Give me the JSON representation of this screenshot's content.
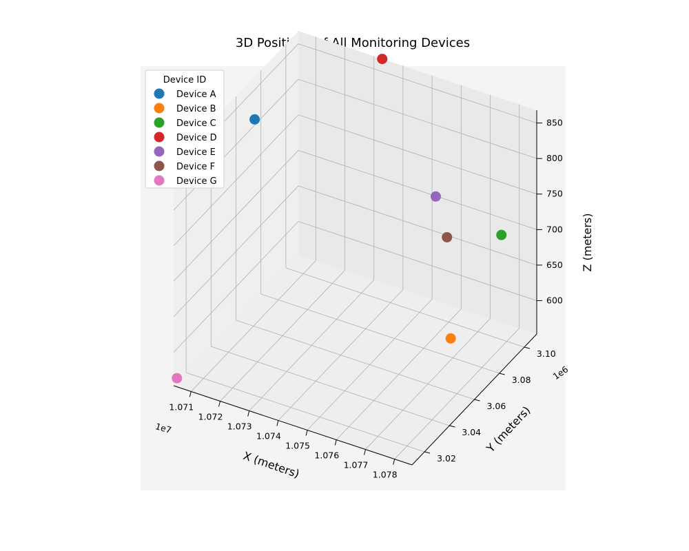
{
  "chart_data": {
    "type": "scatter",
    "title": "3D Positions of All Monitoring Devices",
    "xlabel": "X (meters)",
    "ylabel": "Y (meters)",
    "zlabel": "Z (meters)",
    "x_ticks": [
      "1.071",
      "1.072",
      "1.073",
      "1.074",
      "1.075",
      "1.076",
      "1.077",
      "1.078"
    ],
    "y_ticks": [
      "3.02",
      "3.04",
      "3.06",
      "3.08",
      "3.10"
    ],
    "z_ticks": [
      "600",
      "650",
      "700",
      "750",
      "800",
      "850"
    ],
    "x_offset_text": "1e7",
    "y_offset_text": "1e6",
    "legend_title": "Device ID",
    "legend_position": "upper-left",
    "grid": true,
    "series": [
      {
        "name": "Device A",
        "color": "#1f77b4",
        "x": 10707000,
        "y": 3068000,
        "z": 825
      },
      {
        "name": "Device B",
        "color": "#ff7f0e",
        "x": 10780000,
        "y": 3055000,
        "z": 640
      },
      {
        "name": "Device C",
        "color": "#2ca02c",
        "x": 10779000,
        "y": 3098000,
        "z": 705
      },
      {
        "name": "Device D",
        "color": "#d62728",
        "x": 10735000,
        "y": 3105000,
        "z": 880
      },
      {
        "name": "Device E",
        "color": "#9467bd",
        "x": 10762000,
        "y": 3085000,
        "z": 760
      },
      {
        "name": "Device F",
        "color": "#8c564b",
        "x": 10768000,
        "y": 3080000,
        "z": 720
      },
      {
        "name": "Device G",
        "color": "#e377c2",
        "x": 10706000,
        "y": 3008000,
        "z": 570
      }
    ]
  }
}
